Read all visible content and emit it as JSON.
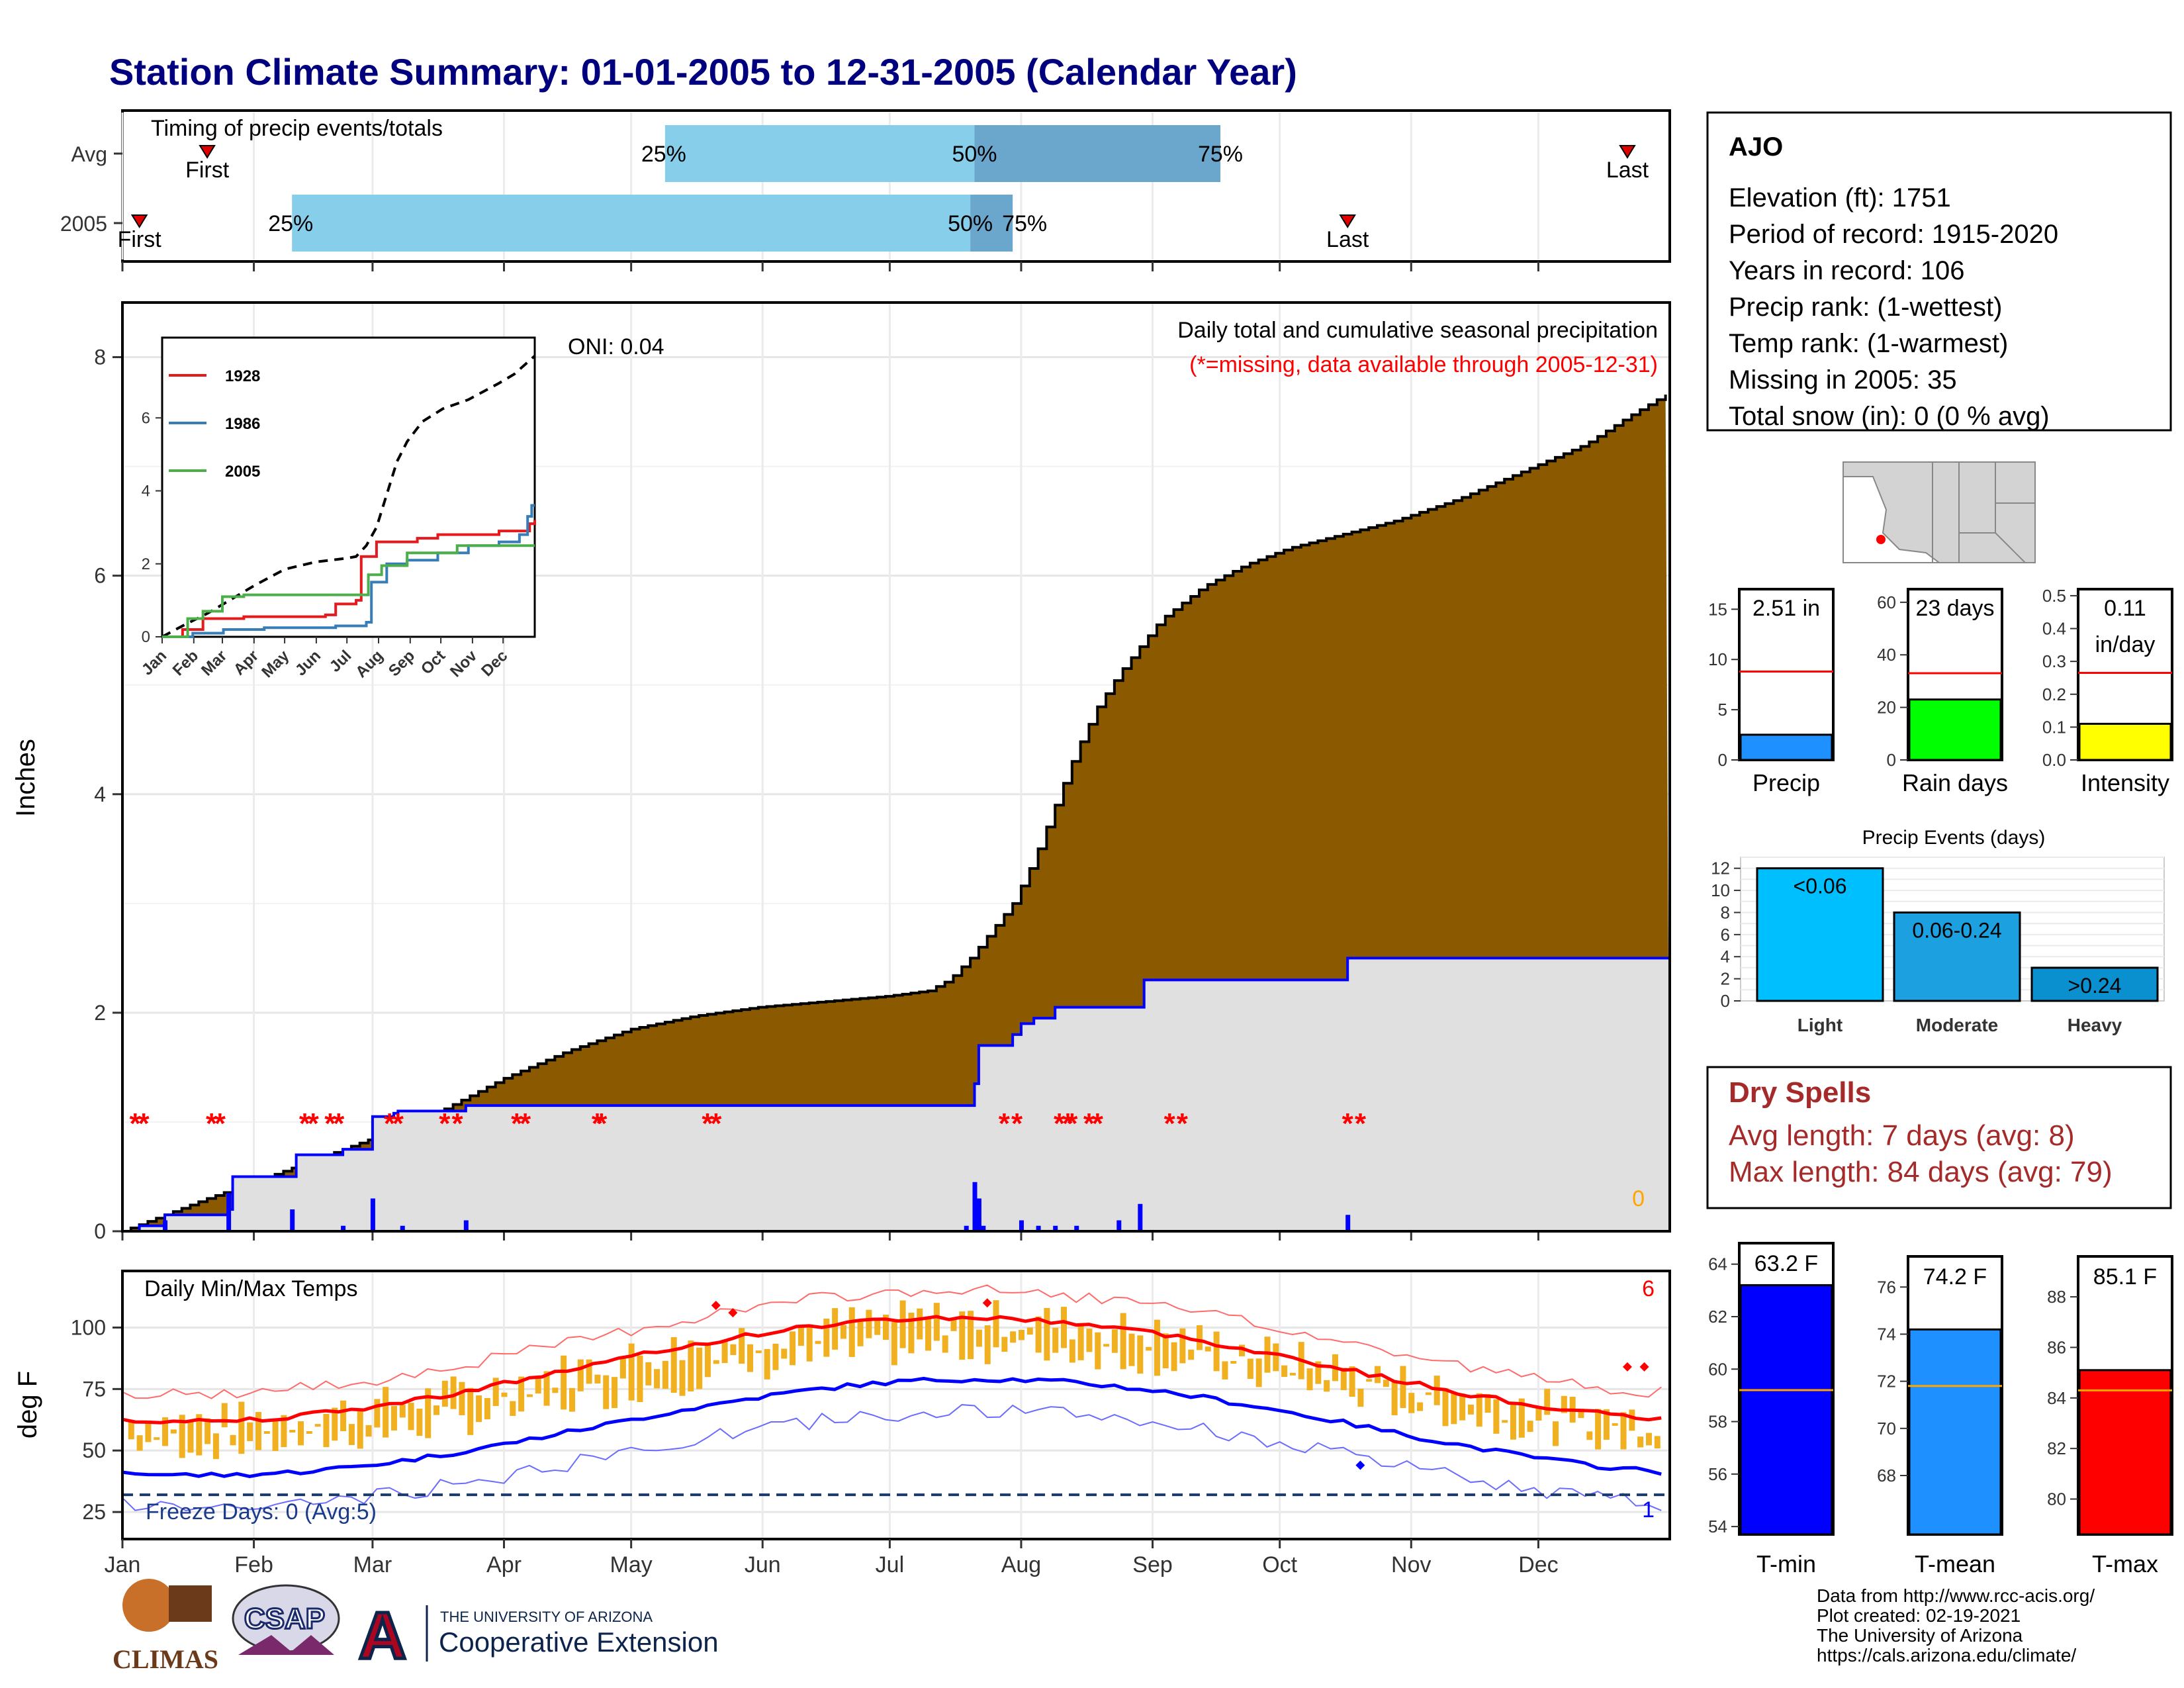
{
  "title": "Station Climate Summary: 01-01-2005 to 12-31-2005 (Calendar Year)",
  "months": [
    "Jan",
    "Feb",
    "Mar",
    "Apr",
    "May",
    "Jun",
    "Jul",
    "Aug",
    "Sep",
    "Oct",
    "Nov",
    "Dec"
  ],
  "timing": {
    "title": "Timing of precip events/totals",
    "rows": [
      {
        "label": "Avg",
        "first_doy": 20,
        "last_doy": 355,
        "q25": 128,
        "q50": 201,
        "q75": 259,
        "first_label": "First",
        "last_label": "Last",
        "q25_label": "25%",
        "q50_label": "50%",
        "q75_label": "75%"
      },
      {
        "label": "2005",
        "first_doy": 4,
        "last_doy": 289,
        "q25": 40,
        "q50": 200,
        "q75": 210,
        "first_label": "First",
        "last_label": "Last",
        "q25_label": "25%",
        "q50_label": "50%",
        "q75_label": "75%"
      }
    ],
    "colors": {
      "light": "#87ceeb",
      "dark": "#6ba6cc",
      "marker": "#e00000"
    }
  },
  "precip_chart": {
    "ylabel": "Inches",
    "yticks": [
      0,
      2,
      4,
      6,
      8
    ],
    "title": "Daily total and cumulative seasonal precipitation",
    "missing_note": "(*=missing, data available through 2005-12-31)",
    "oni": "ONI: 0.04",
    "corner_count": "0",
    "avg_cumulative": [
      [
        0,
        0
      ],
      [
        10,
        0.15
      ],
      [
        20,
        0.3
      ],
      [
        31,
        0.45
      ],
      [
        45,
        0.65
      ],
      [
        59,
        0.85
      ],
      [
        66,
        1.0
      ],
      [
        75,
        1.1
      ],
      [
        90,
        1.4
      ],
      [
        105,
        1.65
      ],
      [
        120,
        1.85
      ],
      [
        135,
        1.97
      ],
      [
        150,
        2.05
      ],
      [
        165,
        2.1
      ],
      [
        180,
        2.15
      ],
      [
        190,
        2.2
      ],
      [
        195,
        2.3
      ],
      [
        200,
        2.5
      ],
      [
        205,
        2.75
      ],
      [
        210,
        3.0
      ],
      [
        215,
        3.4
      ],
      [
        220,
        3.9
      ],
      [
        225,
        4.4
      ],
      [
        230,
        4.8
      ],
      [
        235,
        5.1
      ],
      [
        240,
        5.35
      ],
      [
        245,
        5.6
      ],
      [
        255,
        5.9
      ],
      [
        265,
        6.1
      ],
      [
        275,
        6.25
      ],
      [
        285,
        6.35
      ],
      [
        300,
        6.5
      ],
      [
        315,
        6.7
      ],
      [
        330,
        6.95
      ],
      [
        345,
        7.2
      ],
      [
        355,
        7.45
      ],
      [
        365,
        7.68
      ]
    ],
    "year_cumulative": [
      [
        0,
        0
      ],
      [
        4,
        0.05
      ],
      [
        10,
        0.15
      ],
      [
        25,
        0.2
      ],
      [
        26,
        0.5
      ],
      [
        40,
        0.5
      ],
      [
        41,
        0.7
      ],
      [
        51,
        0.7
      ],
      [
        52,
        0.75
      ],
      [
        58,
        0.75
      ],
      [
        59,
        1.05
      ],
      [
        64,
        1.08
      ],
      [
        65,
        1.1
      ],
      [
        80,
        1.1
      ],
      [
        81,
        1.15
      ],
      [
        200,
        1.15
      ],
      [
        201,
        1.35
      ],
      [
        202,
        1.7
      ],
      [
        208,
        1.7
      ],
      [
        210,
        1.8
      ],
      [
        212,
        1.9
      ],
      [
        215,
        1.95
      ],
      [
        220,
        2.05
      ],
      [
        240,
        2.05
      ],
      [
        241,
        2.3
      ],
      [
        288,
        2.3
      ],
      [
        289,
        2.5
      ],
      [
        365,
        2.5
      ]
    ],
    "daily_bars": [
      [
        10,
        0.1
      ],
      [
        25,
        0.35
      ],
      [
        40,
        0.2
      ],
      [
        52,
        0.05
      ],
      [
        59,
        0.3
      ],
      [
        66,
        0.05
      ],
      [
        81,
        0.1
      ],
      [
        199,
        0.05
      ],
      [
        201,
        0.45
      ],
      [
        202,
        0.3
      ],
      [
        203,
        0.05
      ],
      [
        212,
        0.1
      ],
      [
        216,
        0.05
      ],
      [
        220,
        0.05
      ],
      [
        225,
        0.05
      ],
      [
        235,
        0.1
      ],
      [
        240,
        0.25
      ],
      [
        289,
        0.15
      ]
    ],
    "missing_doys": [
      3,
      5,
      21,
      23,
      43,
      45,
      49,
      51,
      63,
      65,
      76,
      79,
      93,
      95,
      112,
      113,
      138,
      140,
      208,
      211,
      221,
      223,
      224,
      228,
      230,
      247,
      250,
      289,
      292
    ],
    "colors": {
      "avg_fill": "#8b5a00",
      "year_fill": "#e0e0e0",
      "year_line": "#0000ff",
      "bar": "#0000ff",
      "missing": "#ff0000"
    },
    "inset": {
      "yticks": [
        0,
        2,
        4,
        6
      ],
      "months": [
        "Jan",
        "Feb",
        "Mar",
        "Apr",
        "May",
        "Jun",
        "Jul",
        "Aug",
        "Sep",
        "Oct",
        "Nov",
        "Dec"
      ],
      "series": [
        {
          "name": "1928",
          "color": "#e41a1c",
          "points": [
            [
              0,
              0
            ],
            [
              20,
              0.2
            ],
            [
              40,
              0.5
            ],
            [
              80,
              0.55
            ],
            [
              160,
              0.6
            ],
            [
              170,
              0.9
            ],
            [
              190,
              1.0
            ],
            [
              195,
              2.2
            ],
            [
              210,
              2.6
            ],
            [
              250,
              2.7
            ],
            [
              270,
              2.8
            ],
            [
              300,
              2.8
            ],
            [
              330,
              2.9
            ],
            [
              350,
              2.9
            ],
            [
              360,
              3.1
            ],
            [
              365,
              3.2
            ]
          ]
        },
        {
          "name": "1986",
          "color": "#377eb8",
          "points": [
            [
              0,
              0
            ],
            [
              30,
              0.1
            ],
            [
              60,
              0.2
            ],
            [
              100,
              0.25
            ],
            [
              170,
              0.3
            ],
            [
              200,
              0.4
            ],
            [
              205,
              1.5
            ],
            [
              220,
              2.0
            ],
            [
              240,
              2.1
            ],
            [
              270,
              2.3
            ],
            [
              300,
              2.5
            ],
            [
              330,
              2.6
            ],
            [
              350,
              2.8
            ],
            [
              358,
              3.3
            ],
            [
              362,
              3.6
            ],
            [
              365,
              3.6
            ]
          ]
        },
        {
          "name": "2005",
          "color": "#4daf4a",
          "points": [
            [
              0,
              0
            ],
            [
              25,
              0.5
            ],
            [
              40,
              0.7
            ],
            [
              59,
              1.1
            ],
            [
              80,
              1.15
            ],
            [
              200,
              1.15
            ],
            [
              202,
              1.7
            ],
            [
              215,
              1.95
            ],
            [
              240,
              2.3
            ],
            [
              289,
              2.5
            ],
            [
              365,
              2.5
            ]
          ]
        }
      ],
      "avg": [
        [
          0,
          0
        ],
        [
          20,
          0.3
        ],
        [
          45,
          0.65
        ],
        [
          66,
          1.0
        ],
        [
          90,
          1.4
        ],
        [
          120,
          1.85
        ],
        [
          150,
          2.05
        ],
        [
          180,
          2.15
        ],
        [
          190,
          2.2
        ],
        [
          200,
          2.5
        ],
        [
          210,
          3.0
        ],
        [
          220,
          3.9
        ],
        [
          230,
          4.8
        ],
        [
          240,
          5.35
        ],
        [
          255,
          5.9
        ],
        [
          275,
          6.25
        ],
        [
          300,
          6.5
        ],
        [
          330,
          6.95
        ],
        [
          345,
          7.2
        ],
        [
          355,
          7.45
        ],
        [
          365,
          7.7
        ]
      ]
    }
  },
  "temp_chart": {
    "ylabel": "deg F",
    "title": "Daily Min/Max Temps",
    "yticks": [
      25,
      50,
      75,
      100
    ],
    "freeze_label": "Freeze Days: 0 (Avg:5)",
    "freeze_line": 32,
    "corner_hot": "6",
    "corner_cold": "1",
    "colors": {
      "bar": "#f0b020",
      "tmax": "#ff0000",
      "tmin": "#0000ff",
      "freeze": "#1a3a6b"
    }
  },
  "station": {
    "name": "AJO",
    "lines": [
      "Elevation (ft): 1751",
      "Period of record: 1915-2020",
      "Years in record: 106",
      "Precip rank:  (1-wettest)",
      "Temp rank:  (1-warmest)",
      "Missing in 2005: 35",
      "Total snow (in): 0 (0 % avg)"
    ]
  },
  "small_bars": [
    {
      "label": "Precip",
      "value": 2.51,
      "avg": 8.8,
      "yticks": [
        0,
        5,
        10,
        15
      ],
      "ymax": 17,
      "text1": "2.51 in",
      "text2": "",
      "color": "#1e90ff"
    },
    {
      "label": "Rain days",
      "value": 23,
      "avg": 33,
      "yticks": [
        0,
        20,
        40,
        60
      ],
      "ymax": 65,
      "text1": "23 days",
      "text2": "",
      "color": "#00ff00"
    },
    {
      "label": "Intensity",
      "value": 0.11,
      "avg": 0.265,
      "yticks": [
        "0.0",
        "0.1",
        "0.2",
        "0.3",
        "0.4",
        "0.5"
      ],
      "ymax": 0.52,
      "text1": "0.11",
      "text2": "in/day",
      "color": "#ffff00"
    }
  ],
  "events": {
    "title": "Precip Events (days)",
    "yticks": [
      0,
      2,
      4,
      6,
      8,
      10,
      12
    ],
    "categories": [
      "Light",
      "Moderate",
      "Heavy"
    ],
    "values": [
      12,
      8,
      3
    ],
    "labels": [
      "<0.06",
      "0.06-0.24",
      ">0.24"
    ],
    "colors": [
      "#00bfff",
      "#1ca0df",
      "#0b90cf"
    ]
  },
  "dry_spells": {
    "title": "Dry Spells",
    "avg_line": "Avg length: 7 days (avg: 8)",
    "max_line": "Max length: 84 days (avg: 79)"
  },
  "temp_bars": [
    {
      "label": "T-min",
      "value": 63.2,
      "avg": 59.2,
      "text": "63.2 F",
      "yticks": [
        54,
        56,
        58,
        60,
        62,
        64
      ],
      "ymin": 53.7,
      "ymax": 64.8,
      "color": "#0000ff"
    },
    {
      "label": "T-mean",
      "value": 74.2,
      "avg": 71.8,
      "text": "74.2 F",
      "yticks": [
        68,
        70,
        72,
        74,
        76
      ],
      "ymin": 65.5,
      "ymax": 77.3,
      "color": "#1e90ff"
    },
    {
      "label": "T-max",
      "value": 85.1,
      "avg": 84.3,
      "text": "85.1 F",
      "yticks": [
        80,
        82,
        84,
        86,
        88
      ],
      "ymin": 78.6,
      "ymax": 89.6,
      "color": "#ff0000"
    }
  ],
  "footer": {
    "lines": [
      "Data from http://www.rcc-acis.org/",
      "Plot created: 02-19-2021",
      "The University of Arizona",
      "https://cals.arizona.edu/climate/"
    ],
    "logo1": "CLIMAS",
    "logo2": "CSAP",
    "logo3_small": "THE UNIVERSITY OF ARIZONA",
    "logo3_big": "Cooperative Extension",
    "logo3_mark": "A"
  }
}
